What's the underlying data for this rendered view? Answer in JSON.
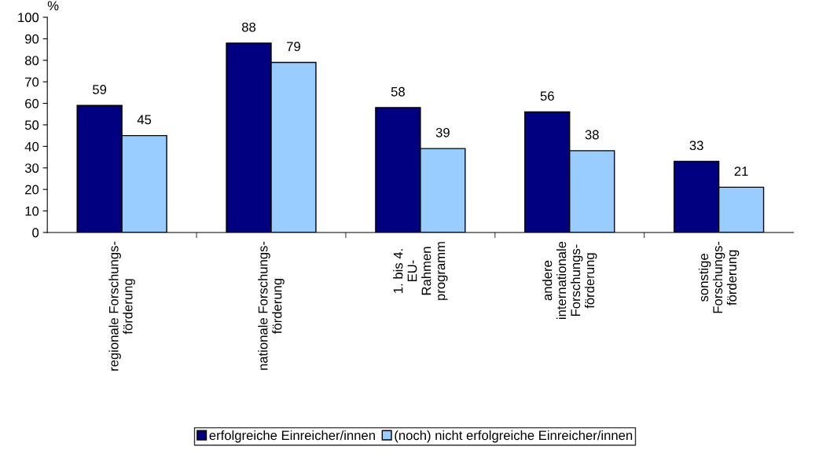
{
  "chart_data": {
    "type": "bar",
    "ylabel": "%",
    "categories": [
      "regionale Forschungs-\nförderung",
      "nationale Forschungs-\nförderung",
      "1. bis 4.\nEU-\nRahmen\nprogramm",
      "andere\ninternationale\nForschungs-\nförderung",
      "sonstige\nForschungs-\nförderung"
    ],
    "series": [
      {
        "name": "erfolgreiche Einreicher/innen",
        "color": "#000080",
        "values": [
          59,
          88,
          58,
          56,
          33
        ]
      },
      {
        "name": "(noch) nicht erfolgreiche Einreicher/innen",
        "color": "#99ccff",
        "values": [
          45,
          79,
          39,
          38,
          21
        ]
      }
    ],
    "ylim": [
      0,
      100
    ],
    "yticks": [
      0,
      10,
      20,
      30,
      40,
      50,
      60,
      70,
      80,
      90,
      100
    ],
    "data_labels": true,
    "legend": "bottom",
    "grid": false
  }
}
